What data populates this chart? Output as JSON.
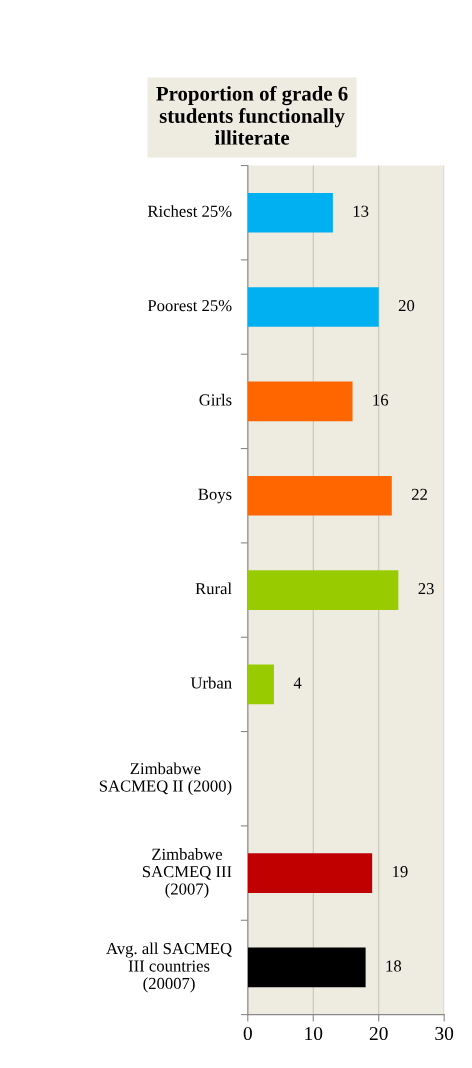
{
  "chart_data": {
    "type": "bar",
    "orientation": "horizontal",
    "title": "Proportion of grade 6\nstudents functionally\nilliterate",
    "categories": [
      "Richest 25%",
      "Poorest 25%",
      "Girls",
      "Boys",
      "Rural",
      "Urban",
      "Zimbabwe\nSACMEQ II (2000)",
      "Zimbabwe\nSACMEQ III\n(2007)",
      "Avg. all SACMEQ\nIII countries\n(20007)"
    ],
    "values": [
      13,
      20,
      16,
      22,
      23,
      4,
      null,
      19,
      18
    ],
    "colors": [
      "#00b0f0",
      "#00b0f0",
      "#ff6600",
      "#ff6600",
      "#99cc00",
      "#99cc00",
      "#c00000",
      "#c00000",
      "#000000"
    ],
    "xlim": [
      0,
      30
    ],
    "xticks": [
      0,
      10,
      20,
      30
    ],
    "grid": "x",
    "data_labels": true
  }
}
